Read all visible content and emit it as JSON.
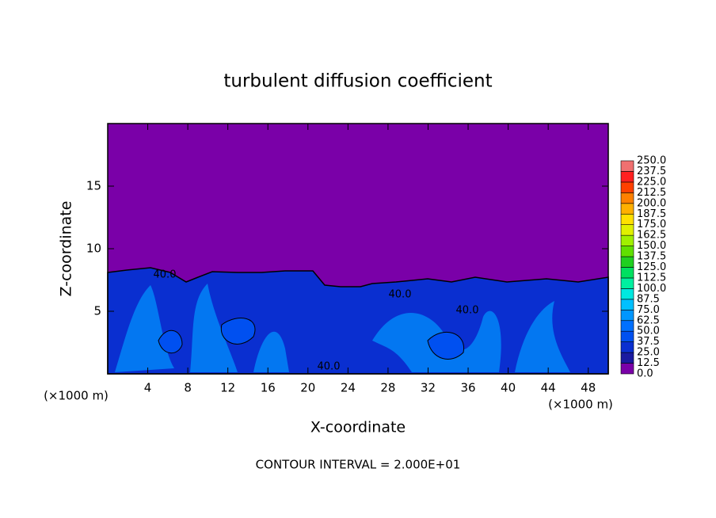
{
  "chart_data": {
    "type": "contour",
    "title": "turbulent diffusion coefficient",
    "x_label": "X-coordinate",
    "y_label": "Z-coordinate",
    "x_unit": "(×1000 m)",
    "y_unit": "(×1000 m)",
    "footnote": "CONTOUR INTERVAL = 2.000E+01",
    "contour_labels": [
      "40.0",
      "40.0",
      "40.0",
      "40.0"
    ],
    "xlim": [
      0,
      50
    ],
    "xticks": [
      4,
      8,
      12,
      16,
      20,
      24,
      28,
      32,
      36,
      40,
      44,
      48
    ],
    "ylim": [
      0,
      20
    ],
    "yticks": [
      5,
      10,
      15
    ],
    "colorbar_levels": [
      {
        "value": 0,
        "label": "0.0"
      },
      {
        "value": 12.5,
        "label": "12.5"
      },
      {
        "value": 25,
        "label": "25.0"
      },
      {
        "value": 37.5,
        "label": "37.5"
      },
      {
        "value": 50,
        "label": "50.0"
      },
      {
        "value": 62.5,
        "label": "62.5"
      },
      {
        "value": 75,
        "label": "75.0"
      },
      {
        "value": 87.5,
        "label": "87.5"
      },
      {
        "value": 100,
        "label": "100.0"
      },
      {
        "value": 112.5,
        "label": "112.5"
      },
      {
        "value": 125,
        "label": "125.0"
      },
      {
        "value": 137.5,
        "label": "137.5"
      },
      {
        "value": 150,
        "label": "150.0"
      },
      {
        "value": 162.5,
        "label": "162.5"
      },
      {
        "value": 175,
        "label": "175.0"
      },
      {
        "value": 187.5,
        "label": "187.5"
      },
      {
        "value": 200,
        "label": "200.0"
      },
      {
        "value": 212.5,
        "label": "212.5"
      },
      {
        "value": 225,
        "label": "225.0"
      },
      {
        "value": 237.5,
        "label": "237.5"
      },
      {
        "value": 250,
        "label": "250.0"
      }
    ],
    "colorbar_colors": [
      "#7a00a8",
      "#1a1aa0",
      "#0a2fd0",
      "#0050f0",
      "#0070ff",
      "#0096ff",
      "#00c0ff",
      "#00e8e0",
      "#00f0a0",
      "#00e060",
      "#20d020",
      "#60e000",
      "#a0f000",
      "#e0f000",
      "#ffe000",
      "#ffb000",
      "#ff8000",
      "#ff4000",
      "#ff2020",
      "#f07070"
    ]
  }
}
